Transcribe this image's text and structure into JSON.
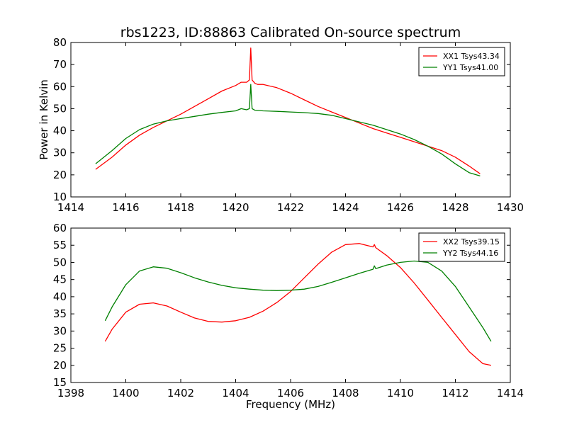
{
  "chart_data": [
    {
      "type": "line",
      "title": "rbs1223, ID:88863 Calibrated On-source spectrum",
      "xlabel": "",
      "ylabel": "Power in Kelvin",
      "xlim": [
        1414,
        1430
      ],
      "ylim": [
        10,
        80
      ],
      "xticks": [
        "1414",
        "1416",
        "1418",
        "1420",
        "1422",
        "1424",
        "1426",
        "1428",
        "1430"
      ],
      "yticks": [
        "10",
        "20",
        "30",
        "40",
        "50",
        "60",
        "70",
        "80"
      ],
      "legend_position": "top-right",
      "series": [
        {
          "name": "XX1 Tsys43.34",
          "color": "#ff0000",
          "x": [
            1414.9,
            1415.5,
            1416.0,
            1416.5,
            1417.0,
            1417.5,
            1418.0,
            1418.5,
            1419.0,
            1419.5,
            1420.0,
            1420.2,
            1420.4,
            1420.5,
            1420.55,
            1420.6,
            1420.7,
            1420.8,
            1421.0,
            1421.5,
            1422.0,
            1422.5,
            1423.0,
            1423.5,
            1424.0,
            1424.5,
            1425.0,
            1425.5,
            1426.0,
            1426.5,
            1427.0,
            1427.5,
            1428.0,
            1428.5,
            1428.9
          ],
          "y": [
            22.5,
            28,
            33.5,
            38,
            41.5,
            44.5,
            47.5,
            51,
            54.5,
            58,
            60.5,
            62,
            62,
            63,
            77.5,
            63,
            61.5,
            61,
            61,
            59.5,
            57,
            54,
            51,
            48.5,
            46,
            43.5,
            41,
            39,
            37,
            35,
            33,
            31,
            28,
            24,
            20.5
          ]
        },
        {
          "name": "YY1 Tsys41.00",
          "color": "#008000",
          "x": [
            1414.9,
            1415.5,
            1416.0,
            1416.5,
            1417.0,
            1417.5,
            1418.0,
            1418.5,
            1419.0,
            1419.5,
            1420.0,
            1420.2,
            1420.4,
            1420.5,
            1420.55,
            1420.6,
            1420.7,
            1420.8,
            1421.0,
            1421.5,
            1422.0,
            1422.5,
            1423.0,
            1423.5,
            1424.0,
            1424.5,
            1425.0,
            1425.5,
            1426.0,
            1426.5,
            1427.0,
            1427.5,
            1428.0,
            1428.5,
            1428.9
          ],
          "y": [
            25,
            31,
            36.5,
            40.5,
            43,
            44.5,
            45.5,
            46.5,
            47.5,
            48.3,
            49,
            50,
            49.5,
            50,
            61,
            50,
            49.3,
            49.2,
            49,
            48.8,
            48.5,
            48.2,
            47.8,
            47,
            45.5,
            44,
            42.5,
            40.5,
            38.5,
            36,
            33,
            29.5,
            25,
            21,
            19.5
          ]
        }
      ]
    },
    {
      "type": "line",
      "title": "",
      "xlabel": "Frequency (MHz)",
      "ylabel": "",
      "xlim": [
        1398,
        1414
      ],
      "ylim": [
        15,
        60
      ],
      "xticks": [
        "1398",
        "1400",
        "1402",
        "1404",
        "1406",
        "1408",
        "1410",
        "1412",
        "1414"
      ],
      "yticks": [
        "15",
        "20",
        "25",
        "30",
        "35",
        "40",
        "45",
        "50",
        "55",
        "60"
      ],
      "legend_position": "top-right",
      "series": [
        {
          "name": "XX2 Tsys39.15",
          "color": "#ff0000",
          "x": [
            1399.25,
            1399.5,
            1400.0,
            1400.5,
            1401.0,
            1401.5,
            1402.0,
            1402.5,
            1403.0,
            1403.5,
            1404.0,
            1404.5,
            1405.0,
            1405.5,
            1406.0,
            1406.5,
            1407.0,
            1407.5,
            1408.0,
            1408.5,
            1409.0,
            1409.05,
            1409.1,
            1409.5,
            1410.0,
            1410.5,
            1411.0,
            1411.5,
            1412.0,
            1412.5,
            1413.0,
            1413.3
          ],
          "y": [
            27,
            30.5,
            35.5,
            37.8,
            38.2,
            37.3,
            35.5,
            33.8,
            32.8,
            32.6,
            33,
            34,
            35.8,
            38.3,
            41.5,
            45.5,
            49.5,
            53,
            55.2,
            55.5,
            54.5,
            55.2,
            54.3,
            52,
            48.5,
            44,
            39,
            34,
            29,
            24,
            20.5,
            20
          ]
        },
        {
          "name": "YY2 Tsys44.16",
          "color": "#008000",
          "x": [
            1399.25,
            1399.5,
            1400.0,
            1400.5,
            1401.0,
            1401.5,
            1402.0,
            1402.5,
            1403.0,
            1403.5,
            1404.0,
            1404.5,
            1405.0,
            1405.5,
            1406.0,
            1406.5,
            1407.0,
            1407.5,
            1408.0,
            1408.5,
            1409.0,
            1409.05,
            1409.1,
            1409.5,
            1410.0,
            1410.5,
            1411.0,
            1411.5,
            1412.0,
            1412.5,
            1413.0,
            1413.3
          ],
          "y": [
            33,
            37,
            43.5,
            47.5,
            48.7,
            48.3,
            47,
            45.5,
            44.3,
            43.3,
            42.6,
            42.2,
            41.9,
            41.8,
            41.9,
            42.2,
            43,
            44.2,
            45.5,
            46.8,
            48,
            49,
            48.2,
            49.2,
            50,
            50.4,
            50,
            47.5,
            43,
            37,
            31,
            27
          ]
        }
      ]
    }
  ]
}
